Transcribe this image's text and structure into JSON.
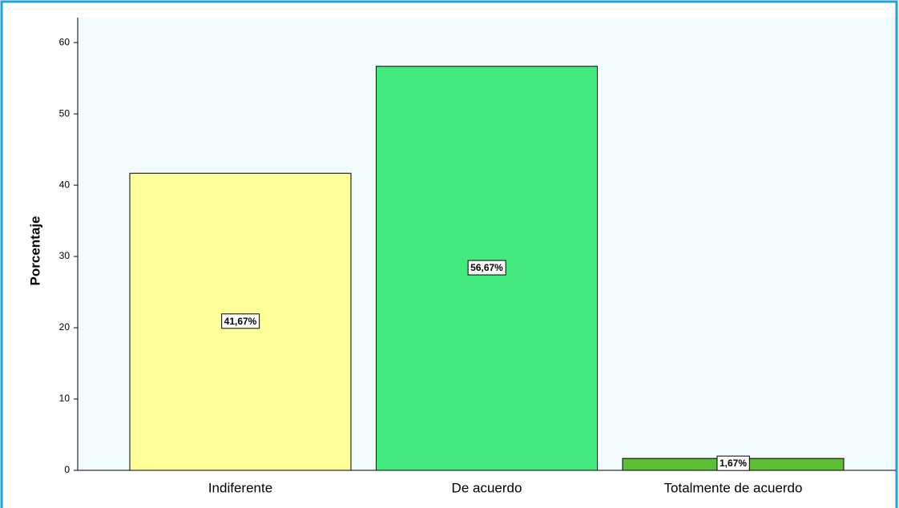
{
  "chart_data": {
    "type": "bar",
    "y_label": "Porcentaje",
    "categories": [
      "Indiferente",
      "De acuerdo",
      "Totalmente de acuerdo"
    ],
    "values": [
      41.67,
      56.67,
      1.67
    ],
    "value_labels": [
      "41,67%",
      "56,67%",
      "1,67%"
    ],
    "colors": [
      "#ffff99",
      "#43eb7e",
      "#5cbf34"
    ],
    "ylim": [
      0,
      63.5
    ],
    "yticks": [
      0,
      10,
      20,
      30,
      40,
      50,
      60
    ]
  }
}
